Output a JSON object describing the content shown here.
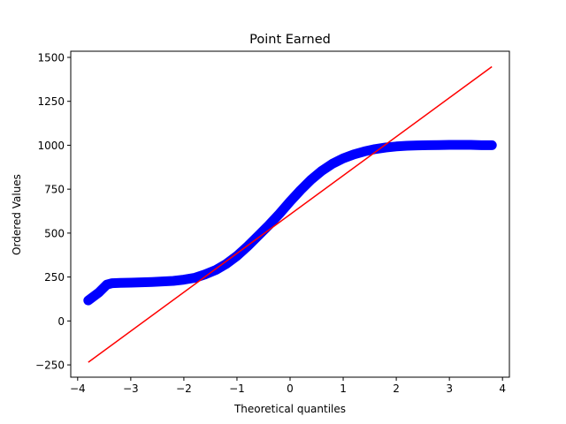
{
  "chart_data": {
    "type": "scatter",
    "title": "Point Earned",
    "xlabel": "Theoretical quantiles",
    "ylabel": "Ordered Values",
    "xlim": [
      -4.13,
      4.13
    ],
    "ylim": [
      -320,
      1535
    ],
    "xticks": [
      -4,
      -3,
      -2,
      -1,
      0,
      1,
      2,
      3,
      4
    ],
    "xtick_labels": [
      "−4",
      "−3",
      "−2",
      "−1",
      "0",
      "1",
      "2",
      "3",
      "4"
    ],
    "yticks": [
      -250,
      0,
      250,
      500,
      750,
      1000,
      1250,
      1500
    ],
    "ytick_labels": [
      "−250",
      "0",
      "250",
      "500",
      "750",
      "1000",
      "1250",
      "1500"
    ],
    "grid": false,
    "colors": {
      "points": "#0000ff",
      "fit_line": "#ff0000",
      "axes": "#000000"
    },
    "series": [
      {
        "kind": "points",
        "x": [
          -3.8,
          -3.6,
          -3.45,
          -3.35,
          -3.2,
          -3.0,
          -2.8,
          -2.6,
          -2.4,
          -2.2,
          -2.0,
          -1.8,
          -1.6,
          -1.4,
          -1.2,
          -1.0,
          -0.8,
          -0.6,
          -0.4,
          -0.2,
          0.0,
          0.2,
          0.4,
          0.6,
          0.8,
          1.0,
          1.2,
          1.4,
          1.6,
          1.8,
          2.0,
          2.2,
          2.4,
          2.6,
          2.8,
          3.0,
          3.2,
          3.4,
          3.6,
          3.8
        ],
        "y": [
          117,
          162,
          207,
          215,
          217,
          218,
          220,
          222,
          225,
          228,
          235,
          245,
          265,
          290,
          325,
          370,
          425,
          485,
          545,
          610,
          680,
          745,
          805,
          855,
          895,
          925,
          948,
          965,
          978,
          987,
          993,
          997,
          999,
          1000,
          1001,
          1002,
          1002,
          1002,
          1000,
          1000
        ]
      },
      {
        "kind": "fit_line",
        "x": [
          -3.8,
          3.8
        ],
        "y": [
          -235,
          1447
        ]
      }
    ]
  }
}
